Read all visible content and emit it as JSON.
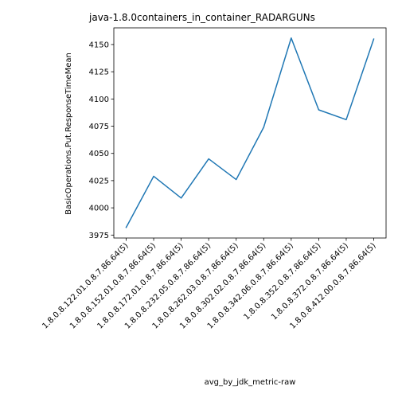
{
  "chart_data": {
    "type": "line",
    "title": "java-1.8.0containers_in_container_RADARGUNs",
    "xlabel": "avg_by_jdk_metric-raw",
    "ylabel": "BasicOperations.Put.ResponseTimeMean",
    "categories": [
      "1.8.0.8.122.01.0.8.7.86.64(5)",
      "1.8.0.8.152.01.0.8.7.86.64(5)",
      "1.8.0.8.172.01.0.8.7.86.64(5)",
      "1.8.0.8.232.05.0.8.7.86.64(5)",
      "1.8.0.8.262.03.0.8.7.86.64(5)",
      "1.8.0.8.302.02.0.8.7.86.64(5)",
      "1.8.0.8.342.06.0.8.7.86.64(5)",
      "1.8.0.8.352.0.8.7.86.64(5)",
      "1.8.0.8.372.0.8.7.86.64(5)",
      "1.8.0.8.412.00.0.8.7.86.64(5)"
    ],
    "series": [
      {
        "values": [
          3982,
          4029,
          4009,
          4045,
          4026,
          4074,
          4156,
          4090,
          4081,
          4155
        ],
        "color": "#1f77b4"
      }
    ],
    "ylim": [
      3972.3,
      4165.3
    ],
    "yticks": [
      3975,
      4000,
      4025,
      4050,
      4075,
      4100,
      4125,
      4150
    ],
    "grid": false,
    "legend": "none"
  }
}
